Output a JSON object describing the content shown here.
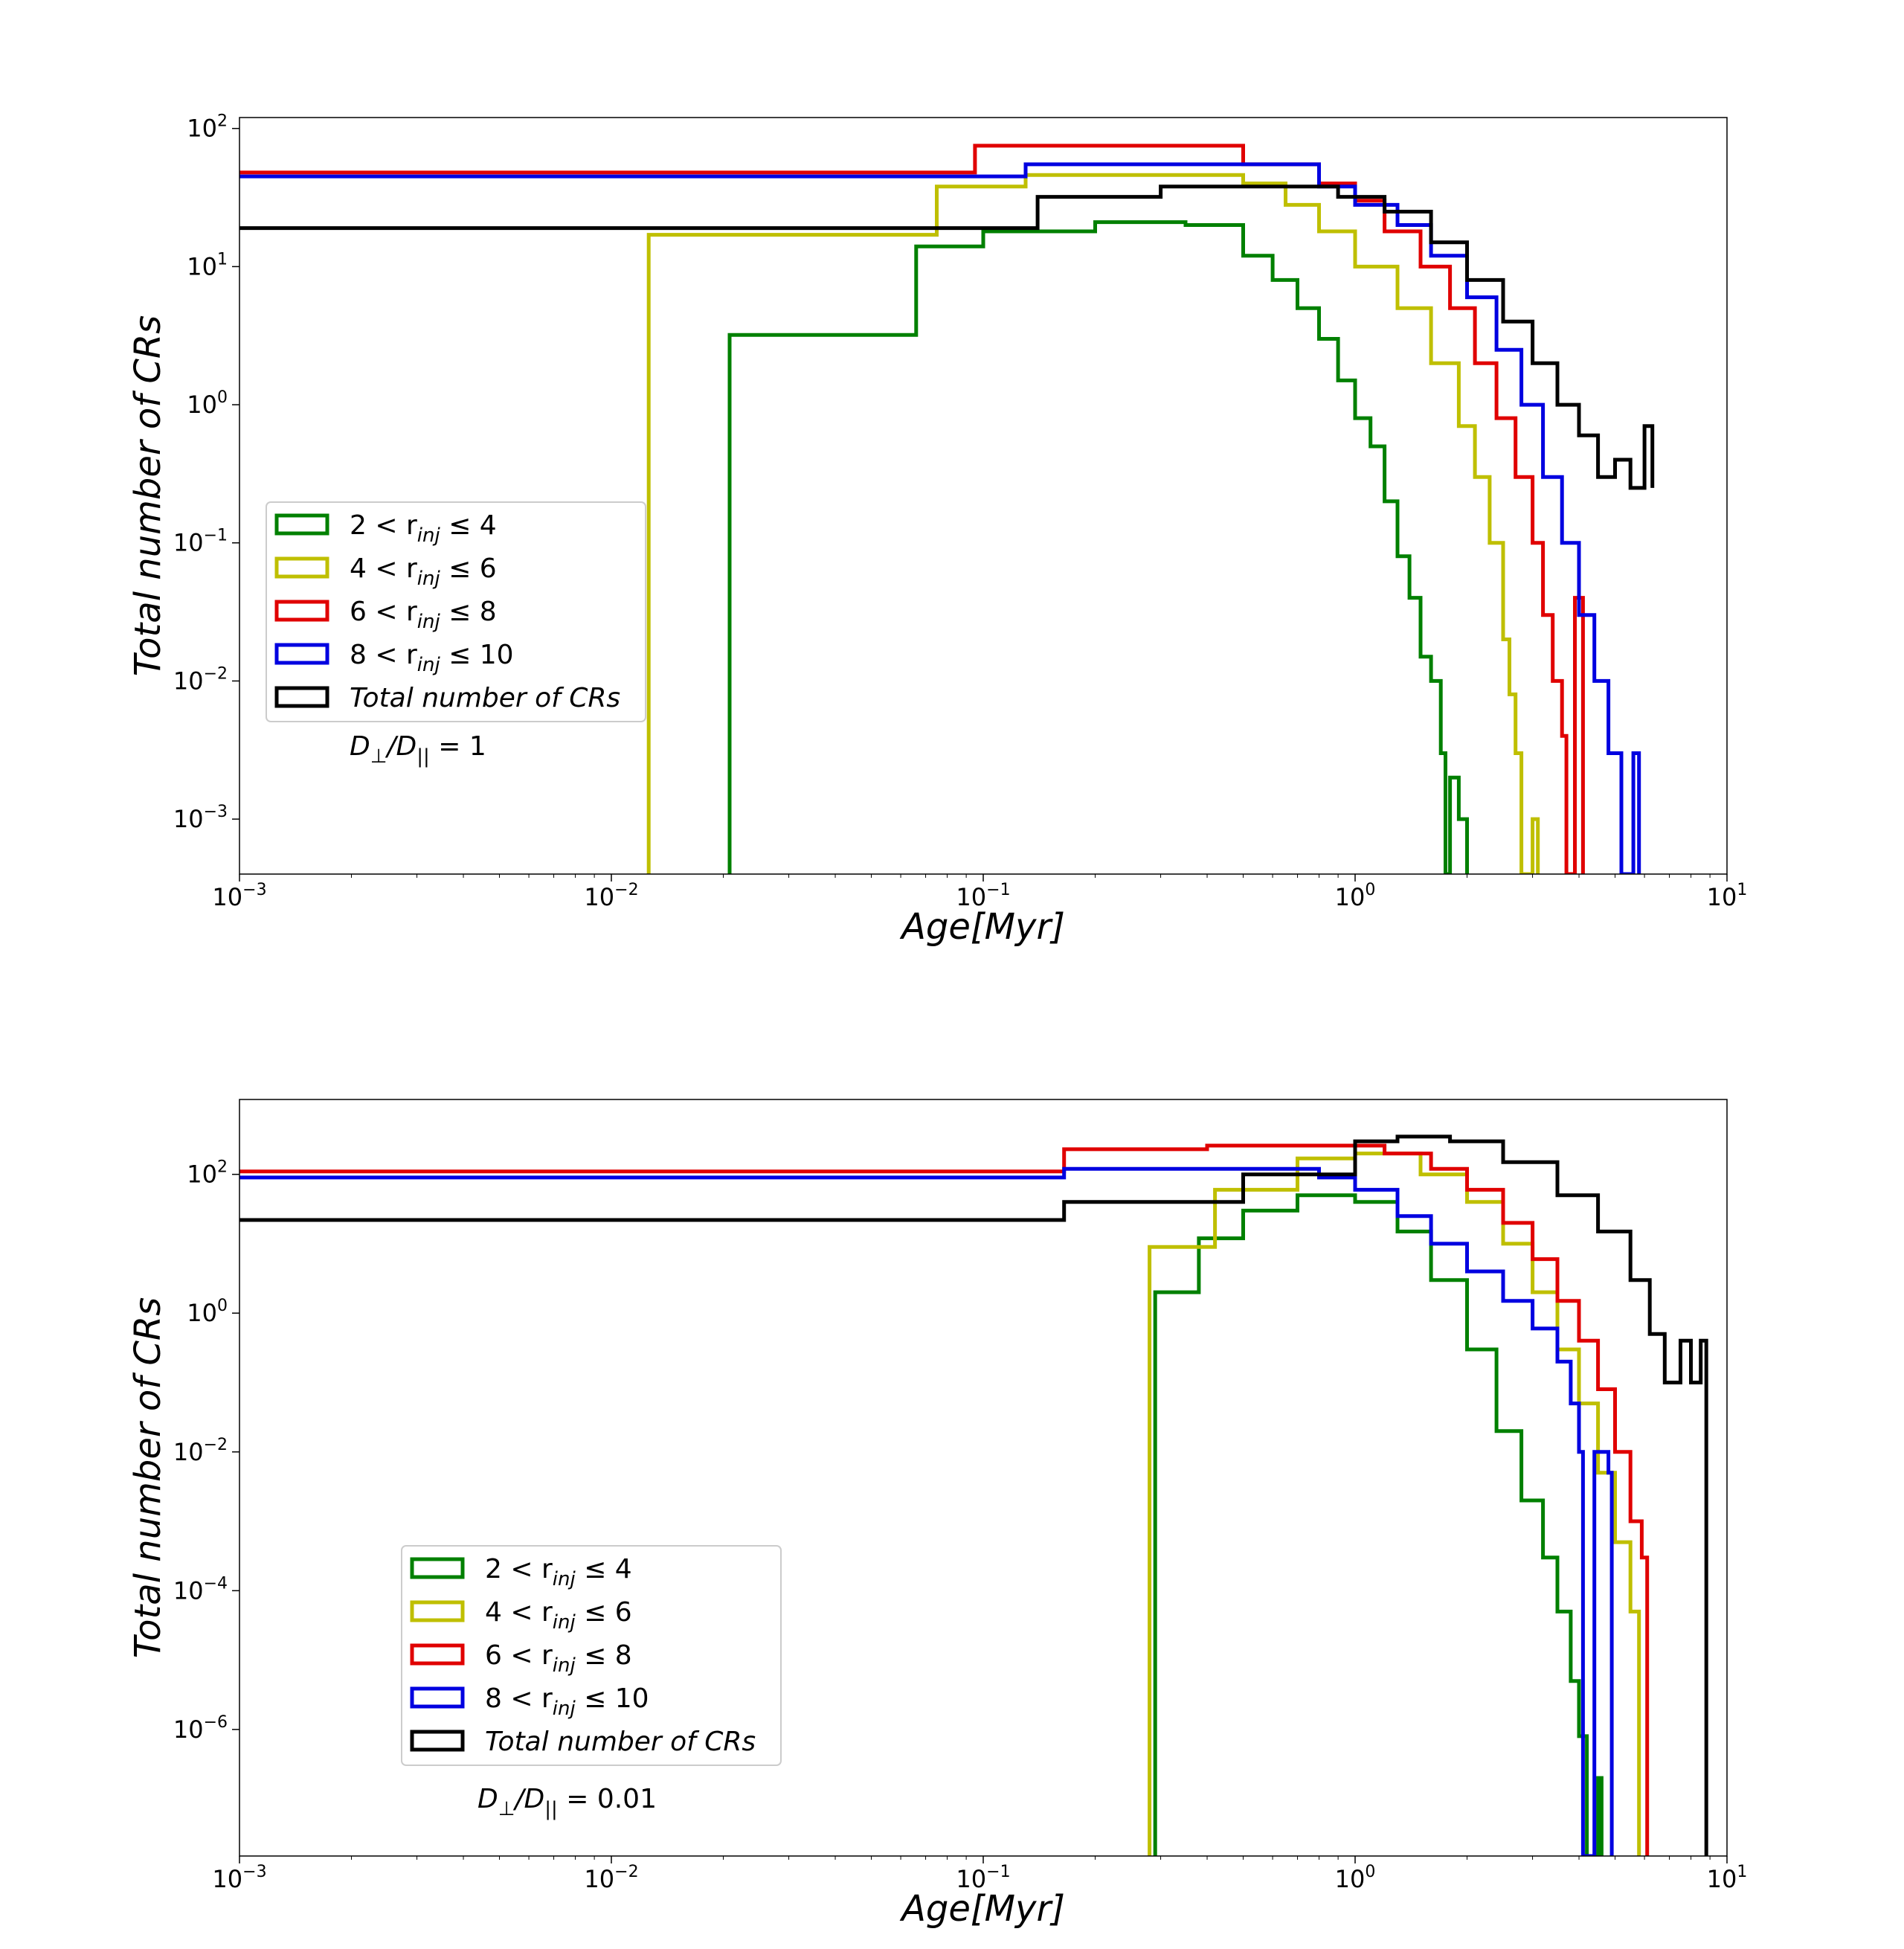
{
  "chart_data": [
    {
      "type": "line",
      "step": true,
      "xscale": "log",
      "yscale": "log",
      "xlim": [
        0.001,
        10
      ],
      "ylim": [
        0.0004,
        120
      ],
      "xlabel": "Age[Myr]",
      "ylabel": "Total number of CRs",
      "x_ticks": [
        {
          "value": 0.001,
          "base": "10",
          "exp": "−3"
        },
        {
          "value": 0.01,
          "base": "10",
          "exp": "−2"
        },
        {
          "value": 0.1,
          "base": "10",
          "exp": "−1"
        },
        {
          "value": 1,
          "base": "10",
          "exp": "0"
        },
        {
          "value": 10,
          "base": "10",
          "exp": "1"
        }
      ],
      "y_ticks": [
        {
          "value": 100,
          "base": "10",
          "exp": "2"
        },
        {
          "value": 10,
          "base": "10",
          "exp": "1"
        },
        {
          "value": 1,
          "base": "10",
          "exp": "0"
        },
        {
          "value": 0.1,
          "base": "10",
          "exp": "−1"
        },
        {
          "value": 0.01,
          "base": "10",
          "exp": "−2"
        },
        {
          "value": 0.001,
          "base": "10",
          "exp": "−3"
        }
      ],
      "legend_position": "center-left",
      "annotation": {
        "left": "D",
        "sub1": "⊥",
        "mid": "/D",
        "sub2": "||",
        "eq": " = 1"
      },
      "series": [
        {
          "name": "2 < r_inj ≤ 4",
          "color": "#008000",
          "legend": {
            "a": "2 < r",
            "sub": "inj",
            "b": " ≤ 4"
          },
          "points": [
            [
              0.0208,
              0.0004
            ],
            [
              0.0208,
              3.2
            ],
            [
              0.066,
              3.2
            ],
            [
              0.066,
              14
            ],
            [
              0.1,
              14
            ],
            [
              0.1,
              18
            ],
            [
              0.2,
              18
            ],
            [
              0.2,
              21
            ],
            [
              0.35,
              20
            ],
            [
              0.5,
              12
            ],
            [
              0.6,
              8
            ],
            [
              0.7,
              5
            ],
            [
              0.8,
              3
            ],
            [
              0.9,
              1.5
            ],
            [
              1.0,
              0.8
            ],
            [
              1.1,
              0.5
            ],
            [
              1.2,
              0.2
            ],
            [
              1.3,
              0.08
            ],
            [
              1.4,
              0.04
            ],
            [
              1.5,
              0.015
            ],
            [
              1.6,
              0.01
            ],
            [
              1.7,
              0.003
            ],
            [
              1.75,
              0.0004
            ],
            [
              1.8,
              0.002
            ],
            [
              1.9,
              0.001
            ],
            [
              2.0,
              0.0004
            ]
          ]
        },
        {
          "name": "4 < r_inj ≤ 6",
          "color": "#bfbf00",
          "legend": {
            "a": "4 < r",
            "sub": "inj",
            "b": " ≤ 6"
          },
          "points": [
            [
              0.0126,
              0.0004
            ],
            [
              0.0126,
              17
            ],
            [
              0.075,
              17
            ],
            [
              0.075,
              38
            ],
            [
              0.13,
              38
            ],
            [
              0.13,
              46
            ],
            [
              0.3,
              46
            ],
            [
              0.5,
              40
            ],
            [
              0.65,
              28
            ],
            [
              0.8,
              18
            ],
            [
              1.0,
              10
            ],
            [
              1.3,
              5
            ],
            [
              1.6,
              2
            ],
            [
              1.9,
              0.7
            ],
            [
              2.1,
              0.3
            ],
            [
              2.3,
              0.1
            ],
            [
              2.5,
              0.02
            ],
            [
              2.6,
              0.008
            ],
            [
              2.7,
              0.003
            ],
            [
              2.8,
              0.0004
            ],
            [
              3.0,
              0.001
            ],
            [
              3.1,
              0.0004
            ]
          ]
        },
        {
          "name": "6 < r_inj ≤ 8",
          "color": "#e00000",
          "legend": {
            "a": "6 < r",
            "sub": "inj",
            "b": " ≤ 8"
          },
          "points": [
            [
              0.001,
              48
            ],
            [
              0.095,
              48
            ],
            [
              0.095,
              75
            ],
            [
              0.3,
              75
            ],
            [
              0.5,
              55
            ],
            [
              0.8,
              40
            ],
            [
              1.0,
              30
            ],
            [
              1.2,
              18
            ],
            [
              1.5,
              10
            ],
            [
              1.8,
              5
            ],
            [
              2.1,
              2
            ],
            [
              2.4,
              0.8
            ],
            [
              2.7,
              0.3
            ],
            [
              3.0,
              0.1
            ],
            [
              3.2,
              0.03
            ],
            [
              3.4,
              0.01
            ],
            [
              3.6,
              0.004
            ],
            [
              3.7,
              0.0004
            ],
            [
              3.9,
              0.04
            ],
            [
              4.1,
              0.0004
            ]
          ]
        },
        {
          "name": "8 < r_inj ≤ 10",
          "color": "#0000e0",
          "legend": {
            "a": "8 < r",
            "sub": "inj",
            "b": " ≤ 10"
          },
          "points": [
            [
              0.001,
              45
            ],
            [
              0.13,
              45
            ],
            [
              0.13,
              55
            ],
            [
              0.5,
              55
            ],
            [
              0.8,
              38
            ],
            [
              1.0,
              28
            ],
            [
              1.3,
              20
            ],
            [
              1.6,
              12
            ],
            [
              2.0,
              6
            ],
            [
              2.4,
              2.5
            ],
            [
              2.8,
              1
            ],
            [
              3.2,
              0.3
            ],
            [
              3.6,
              0.1
            ],
            [
              4.0,
              0.03
            ],
            [
              4.4,
              0.01
            ],
            [
              4.8,
              0.003
            ],
            [
              5.2,
              0.0004
            ],
            [
              5.6,
              0.003
            ],
            [
              5.8,
              0.0004
            ]
          ]
        },
        {
          "name": "Total number of CRs",
          "color": "#000000",
          "legend": {
            "a": "Total  number  of  CRs",
            "sub": "",
            "b": ""
          },
          "points": [
            [
              0.001,
              19
            ],
            [
              0.14,
              19
            ],
            [
              0.14,
              32
            ],
            [
              0.3,
              38
            ],
            [
              0.6,
              38
            ],
            [
              0.9,
              32
            ],
            [
              1.2,
              25
            ],
            [
              1.6,
              15
            ],
            [
              2.0,
              8
            ],
            [
              2.5,
              4
            ],
            [
              3.0,
              2
            ],
            [
              3.5,
              1
            ],
            [
              4.0,
              0.6
            ],
            [
              4.5,
              0.3
            ],
            [
              5.0,
              0.4
            ],
            [
              5.5,
              0.25
            ],
            [
              6.0,
              0.7
            ],
            [
              6.3,
              0.25
            ]
          ]
        }
      ]
    },
    {
      "type": "line",
      "step": true,
      "xscale": "log",
      "yscale": "log",
      "xlim": [
        0.001,
        10
      ],
      "ylim": [
        1.5e-08,
        1200
      ],
      "xlabel": "Age[Myr]",
      "ylabel": "Total number of CRs",
      "x_ticks": [
        {
          "value": 0.001,
          "base": "10",
          "exp": "−3"
        },
        {
          "value": 0.01,
          "base": "10",
          "exp": "−2"
        },
        {
          "value": 0.1,
          "base": "10",
          "exp": "−1"
        },
        {
          "value": 1,
          "base": "10",
          "exp": "0"
        },
        {
          "value": 10,
          "base": "10",
          "exp": "1"
        }
      ],
      "y_ticks": [
        {
          "value": 100,
          "base": "10",
          "exp": "2"
        },
        {
          "value": 1,
          "base": "10",
          "exp": "0"
        },
        {
          "value": 0.01,
          "base": "10",
          "exp": "−2"
        },
        {
          "value": 0.0001,
          "base": "10",
          "exp": "−4"
        },
        {
          "value": 1e-06,
          "base": "10",
          "exp": "−6"
        }
      ],
      "legend_position": "lower-left",
      "annotation": {
        "left": "D",
        "sub1": "⊥",
        "mid": "/D",
        "sub2": "||",
        "eq": " = 0.01"
      },
      "series": [
        {
          "name": "2 < r_inj ≤ 4",
          "color": "#008000",
          "legend": {
            "a": "2 < r",
            "sub": "inj",
            "b": " ≤ 4"
          },
          "points": [
            [
              0.29,
              1.5e-08
            ],
            [
              0.29,
              2
            ],
            [
              0.38,
              2
            ],
            [
              0.38,
              12
            ],
            [
              0.5,
              12
            ],
            [
              0.5,
              30
            ],
            [
              0.7,
              50
            ],
            [
              1.0,
              40
            ],
            [
              1.3,
              15
            ],
            [
              1.6,
              3
            ],
            [
              2.0,
              0.3
            ],
            [
              2.4,
              0.02
            ],
            [
              2.8,
              0.002
            ],
            [
              3.2,
              0.0003
            ],
            [
              3.5,
              5e-05
            ],
            [
              3.8,
              5e-06
            ],
            [
              4.0,
              8e-07
            ],
            [
              4.2,
              1.5e-08
            ],
            [
              4.5,
              2e-07
            ],
            [
              4.6,
              1.5e-08
            ]
          ]
        },
        {
          "name": "4 < r_inj ≤ 6",
          "color": "#bfbf00",
          "legend": {
            "a": "4 < r",
            "sub": "inj",
            "b": " ≤ 6"
          },
          "points": [
            [
              0.28,
              1.5e-08
            ],
            [
              0.28,
              9
            ],
            [
              0.42,
              9
            ],
            [
              0.42,
              60
            ],
            [
              0.7,
              60
            ],
            [
              0.7,
              170
            ],
            [
              1.0,
              200
            ],
            [
              1.5,
              100
            ],
            [
              2.0,
              40
            ],
            [
              2.5,
              10
            ],
            [
              3.0,
              2
            ],
            [
              3.5,
              0.3
            ],
            [
              4.0,
              0.05
            ],
            [
              4.5,
              0.005
            ],
            [
              5.0,
              0.0005
            ],
            [
              5.5,
              5e-05
            ],
            [
              5.8,
              1.5e-08
            ]
          ]
        },
        {
          "name": "6 < r_inj ≤ 8",
          "color": "#e00000",
          "legend": {
            "a": "6 < r",
            "sub": "inj",
            "b": " ≤ 8"
          },
          "points": [
            [
              0.001,
              110
            ],
            [
              0.165,
              110
            ],
            [
              0.165,
              230
            ],
            [
              0.4,
              260
            ],
            [
              0.8,
              260
            ],
            [
              1.2,
              200
            ],
            [
              1.6,
              120
            ],
            [
              2.0,
              60
            ],
            [
              2.5,
              20
            ],
            [
              3.0,
              6
            ],
            [
              3.5,
              1.5
            ],
            [
              4.0,
              0.4
            ],
            [
              4.5,
              0.08
            ],
            [
              5.0,
              0.01
            ],
            [
              5.5,
              0.001
            ],
            [
              5.9,
              0.0003
            ],
            [
              6.1,
              1.5e-08
            ]
          ]
        },
        {
          "name": "8 < r_inj ≤ 10",
          "color": "#0000e0",
          "legend": {
            "a": "8 < r",
            "sub": "inj",
            "b": " ≤ 10"
          },
          "points": [
            [
              0.001,
              90
            ],
            [
              0.165,
              90
            ],
            [
              0.165,
              120
            ],
            [
              0.5,
              120
            ],
            [
              0.8,
              90
            ],
            [
              1.0,
              60
            ],
            [
              1.3,
              25
            ],
            [
              1.6,
              10
            ],
            [
              2.0,
              4
            ],
            [
              2.5,
              1.5
            ],
            [
              3.0,
              0.6
            ],
            [
              3.5,
              0.2
            ],
            [
              3.8,
              0.05
            ],
            [
              4.0,
              0.01
            ],
            [
              4.1,
              1.5e-08
            ],
            [
              4.4,
              0.01
            ],
            [
              4.8,
              0.005
            ],
            [
              4.9,
              1.5e-08
            ]
          ]
        },
        {
          "name": "Total number of CRs",
          "color": "#000000",
          "legend": {
            "a": "Total  number  of  CRs",
            "sub": "",
            "b": ""
          },
          "points": [
            [
              0.001,
              22
            ],
            [
              0.165,
              22
            ],
            [
              0.165,
              40
            ],
            [
              0.4,
              40
            ],
            [
              0.5,
              100
            ],
            [
              1.0,
              300
            ],
            [
              1.3,
              350
            ],
            [
              1.8,
              300
            ],
            [
              2.5,
              150
            ],
            [
              3.5,
              50
            ],
            [
              4.5,
              15
            ],
            [
              5.5,
              3
            ],
            [
              6.2,
              0.5
            ],
            [
              6.8,
              0.1
            ],
            [
              7.5,
              0.4
            ],
            [
              8.0,
              0.1
            ],
            [
              8.5,
              0.4
            ],
            [
              8.8,
              1.5e-08
            ]
          ]
        }
      ]
    }
  ]
}
